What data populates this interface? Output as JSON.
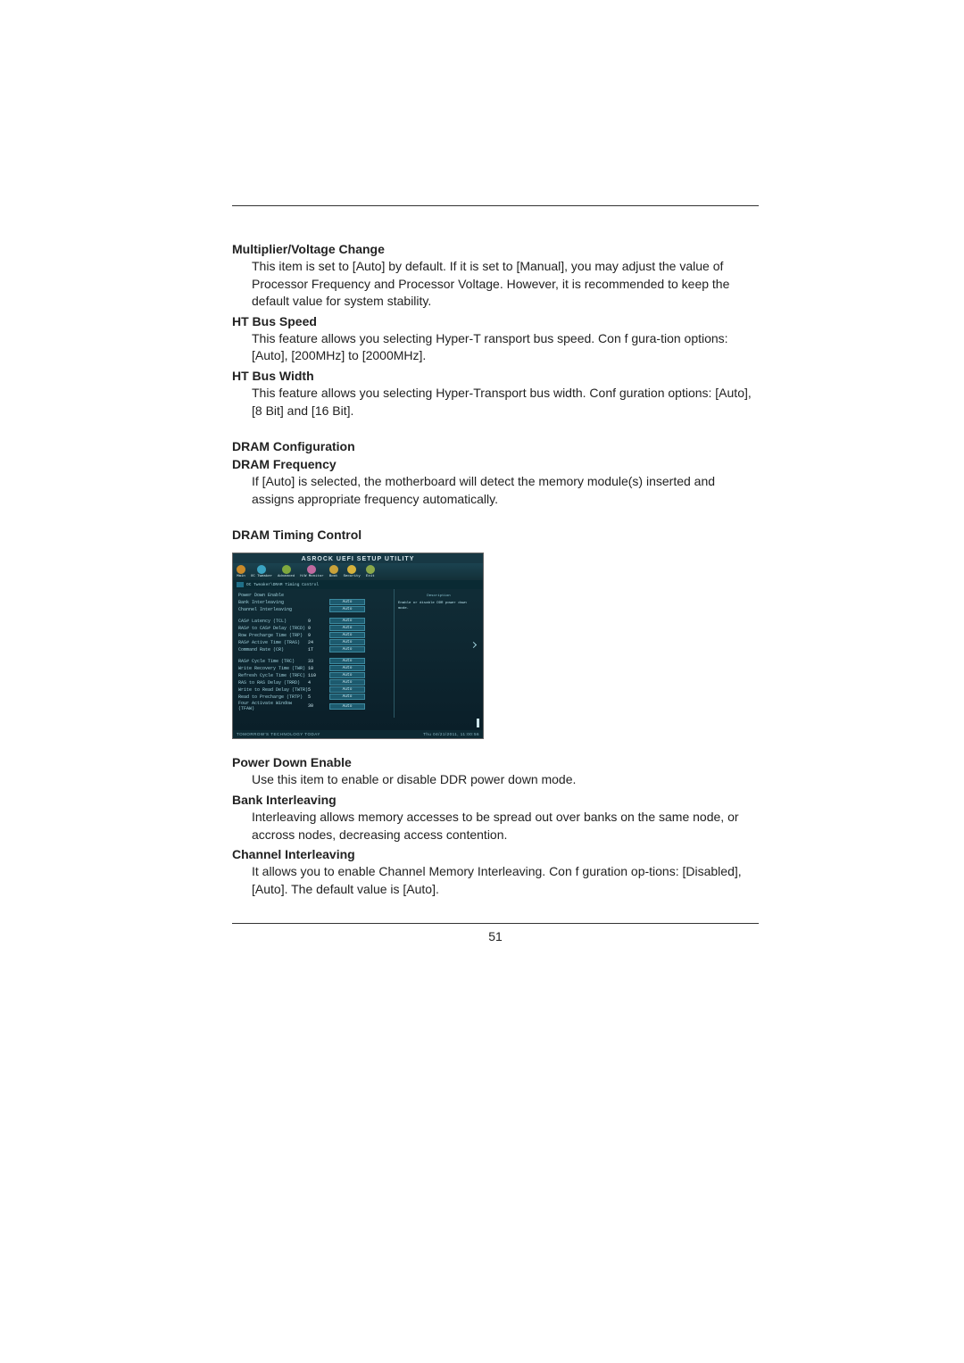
{
  "page_number": "51",
  "sections": {
    "mult": {
      "heading": "Multiplier/Voltage Change",
      "body": "This item is set to [Auto] by default. If it is set to [Manual], you may adjust the value of Processor Frequency and Processor Voltage. However, it is recommended to keep the default value for system stability."
    },
    "htspeed": {
      "heading": "HT Bus Speed",
      "body": "This feature allows you selecting Hyper-T ransport bus speed. Con f gura-tion options: [Auto], [200MHz] to [2000MHz]."
    },
    "htwidth": {
      "heading": "HT Bus Width",
      "body": "This feature allows you selecting Hyper-Transport bus width. Conf guration options: [Auto], [8 Bit] and [16 Bit]."
    },
    "dramconf": {
      "heading": "DRAM Configuration"
    },
    "dramfreq": {
      "heading": "DRAM Frequency",
      "body": "If [Auto] is selected, the motherboard will detect the memory module(s) inserted and assigns appropriate frequency automatically."
    },
    "dramtiming": {
      "heading": "DRAM Timing Control"
    },
    "powerdown": {
      "heading": "Power Down Enable",
      "body": "Use this item to enable or disable DDR power down mode."
    },
    "bankint": {
      "heading": "Bank Interleaving",
      "body": "Interleaving allows memory accesses to be spread out over banks on the same node, or accross nodes, decreasing access contention."
    },
    "chanint": {
      "heading": "Channel Interleaving",
      "body": "It allows you to enable   Channel Memory Interleaving. Con f guration op-tions: [Disabled], [Auto]. The default value is [Auto]."
    }
  },
  "bios": {
    "title": "ASROCK UEFI SETUP UTILITY",
    "tabs": [
      {
        "label": "Main",
        "color": "#c98a2a"
      },
      {
        "label": "OC Tweaker",
        "color": "#3aa3c2"
      },
      {
        "label": "Advanced",
        "color": "#7fa83e"
      },
      {
        "label": "H/W Monitor",
        "color": "#c06aa0"
      },
      {
        "label": "Boot",
        "color": "#c9a23a"
      },
      {
        "label": "Security",
        "color": "#d6b23c"
      },
      {
        "label": "Exit",
        "color": "#8aa84a"
      }
    ],
    "breadcrumb": "OC Tweaker\\DRAM Timing Control",
    "right_header": "Description",
    "right_desc": "Enable or disable DDR power down mode.",
    "rows": [
      {
        "label": "Power Down Enable",
        "num": "",
        "val": ""
      },
      {
        "label": "Bank Interleaving",
        "num": "",
        "val": "Auto"
      },
      {
        "label": "Channel Interleaving",
        "num": "",
        "val": "Auto"
      },
      {
        "label": "",
        "num": "",
        "val": "",
        "gap": true
      },
      {
        "label": "CAS# Latency (TCL)",
        "num": "9",
        "val": "Auto"
      },
      {
        "label": "RAS# to CAS# Delay (TRCD)",
        "num": "9",
        "val": "Auto"
      },
      {
        "label": "Row Precharge Time (TRP)",
        "num": "9",
        "val": "Auto"
      },
      {
        "label": "RAS# Active Time (TRAS)",
        "num": "24",
        "val": "Auto"
      },
      {
        "label": "Command Rate (CR)",
        "num": "1T",
        "val": "Auto"
      },
      {
        "label": "",
        "num": "",
        "val": "",
        "gap": true
      },
      {
        "label": "RAS# Cycle Time (TRC)",
        "num": "33",
        "val": "Auto"
      },
      {
        "label": "Write Recovery Time (TWR)",
        "num": "10",
        "val": "Auto"
      },
      {
        "label": "Refresh Cycle Time (TRFC)",
        "num": "110",
        "val": "Auto"
      },
      {
        "label": "RAS to RAS Delay (TRRD)",
        "num": "4",
        "val": "Auto"
      },
      {
        "label": "Write to Read Delay (TWTR)",
        "num": "5",
        "val": "Auto"
      },
      {
        "label": "Read to Precharge (TRTP)",
        "num": "5",
        "val": "Auto"
      },
      {
        "label": "Four Activate Window (TFAW)",
        "num": "30",
        "val": "Auto"
      }
    ],
    "footer_left": "TOMORROW'S TECHNOLOGY TODAY",
    "footer_right": "Thu 04/21/2011, 11:00:56"
  }
}
